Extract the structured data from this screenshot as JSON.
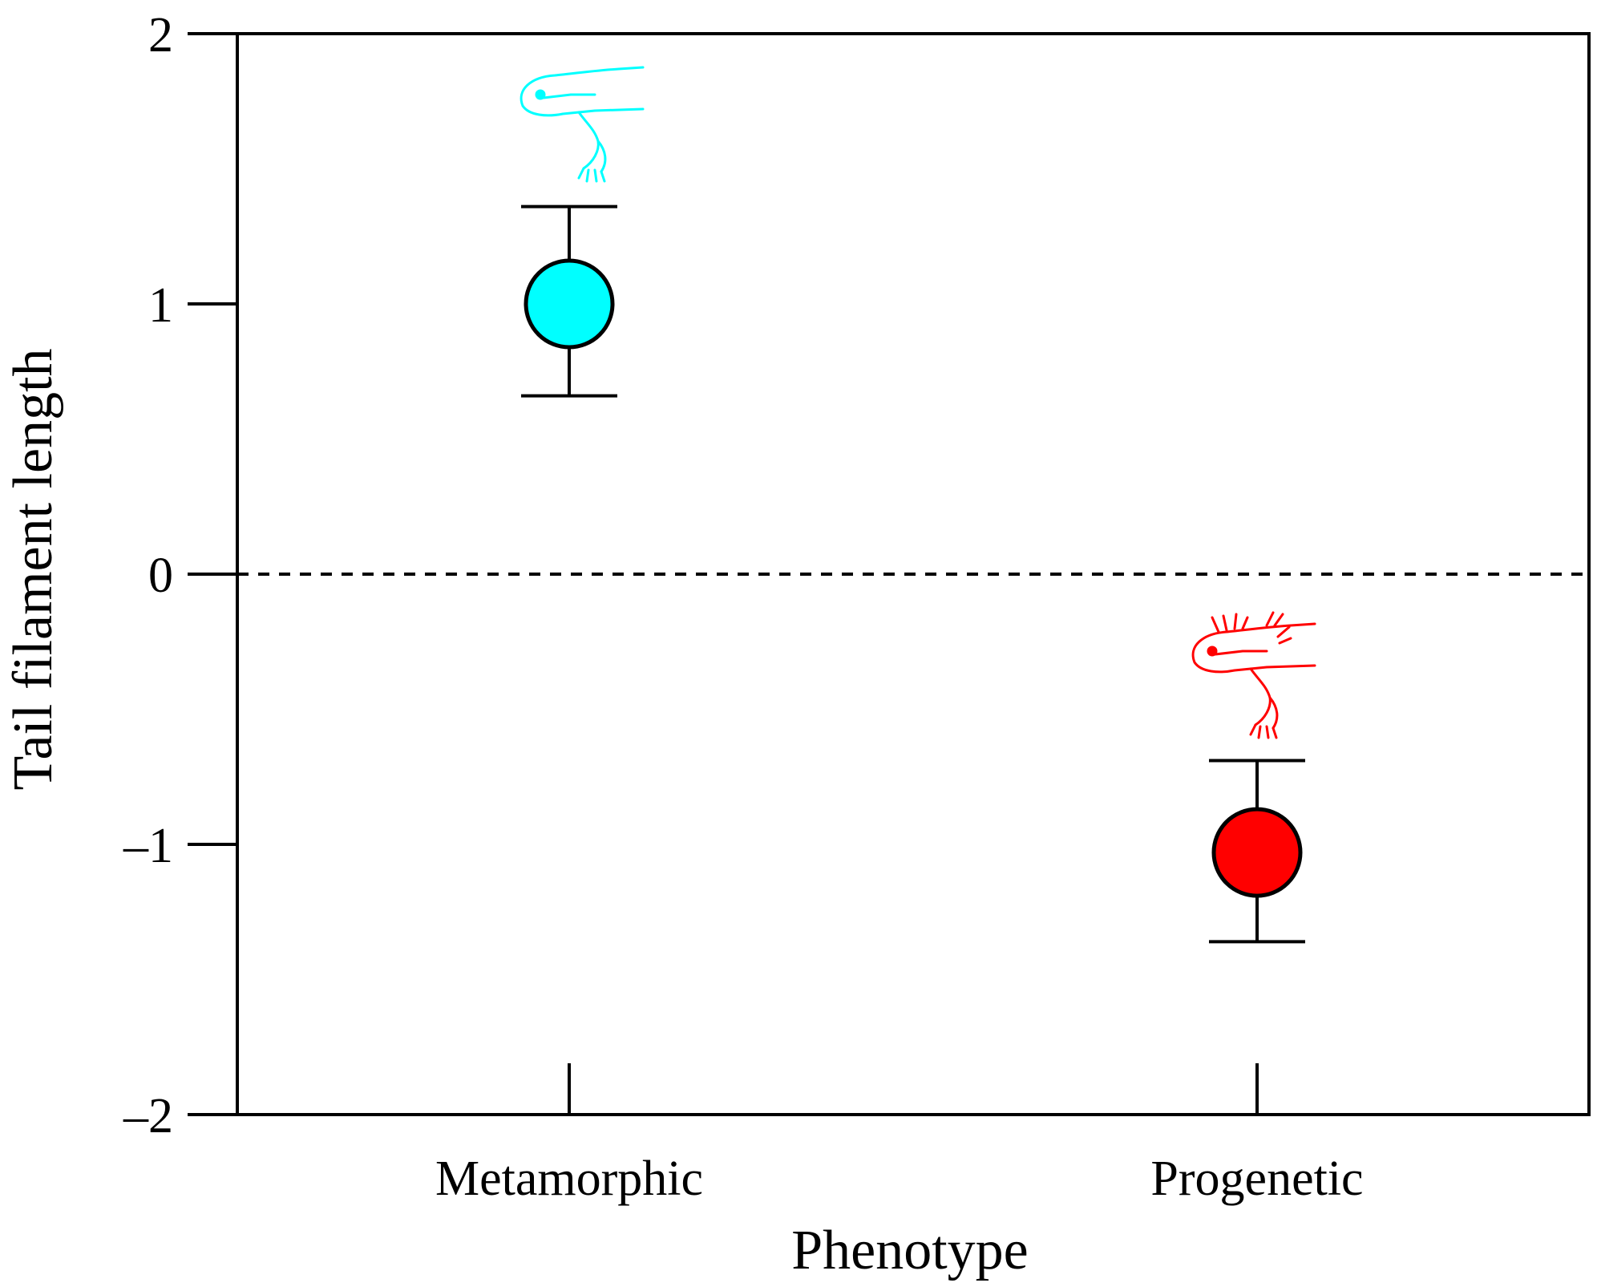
{
  "chart_data": {
    "type": "scatter",
    "xlabel": "Phenotype",
    "ylabel": "Tail filament length",
    "ylim": [
      -2,
      2
    ],
    "yticks": [
      {
        "value": 2,
        "label": "2"
      },
      {
        "value": 1,
        "label": "1"
      },
      {
        "value": 0,
        "label": "0"
      },
      {
        "value": -1,
        "label": "–1"
      },
      {
        "value": -2,
        "label": "–2"
      }
    ],
    "reference_line": {
      "y": 0,
      "style": "dashed"
    },
    "categories": [
      "Metamorphic",
      "Progenetic"
    ],
    "points": [
      {
        "category": "Metamorphic",
        "mean": 1.0,
        "lower": 0.66,
        "upper": 1.36,
        "color": "#00FFFF",
        "icon": "metamorphic-salamander-icon"
      },
      {
        "category": "Progenetic",
        "mean": -1.03,
        "lower": -1.36,
        "upper": -0.69,
        "color": "#FF0000",
        "icon": "progenetic-axolotl-icon"
      }
    ],
    "grid": false
  }
}
